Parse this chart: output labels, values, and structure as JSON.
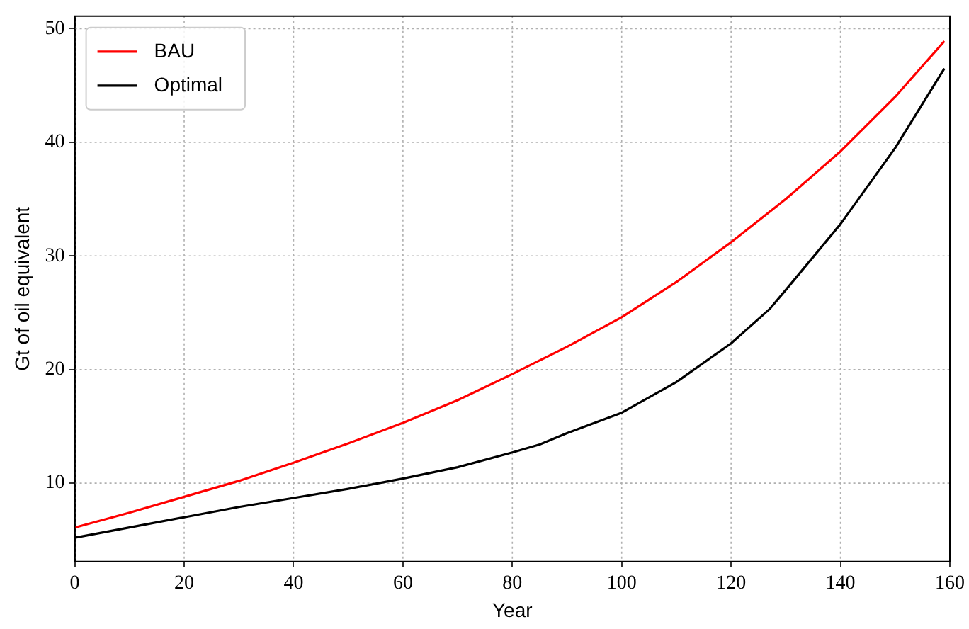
{
  "chart_data": {
    "type": "line",
    "xlabel": "Year",
    "ylabel": "Gt of oil equivalent",
    "xlim": [
      0,
      160
    ],
    "xticks": [
      0,
      20,
      40,
      60,
      80,
      100,
      120,
      140,
      160
    ],
    "ylim": [
      3.1,
      51.1
    ],
    "yticks": [
      10,
      20,
      30,
      40,
      50
    ],
    "grid": true,
    "legend": "top left",
    "line_style": "solid",
    "marker": "none",
    "series": [
      {
        "name": "BAU",
        "color": "#ff0000",
        "x": [
          0,
          10,
          20,
          30,
          40,
          50,
          60,
          70,
          80,
          90,
          100,
          110,
          120,
          130,
          140,
          150,
          159
        ],
        "values": [
          6.1,
          7.4,
          8.8,
          10.2,
          11.8,
          13.5,
          15.3,
          17.3,
          19.6,
          22.0,
          24.6,
          27.7,
          31.2,
          35.0,
          39.2,
          44.0,
          48.9
        ]
      },
      {
        "name": "Optimal",
        "color": "#000000",
        "x": [
          0,
          10,
          20,
          30,
          40,
          50,
          60,
          70,
          80,
          85,
          90,
          100,
          110,
          120,
          127,
          130,
          140,
          150,
          159
        ],
        "values": [
          5.2,
          6.1,
          7.0,
          7.9,
          8.7,
          9.5,
          10.4,
          11.4,
          12.7,
          13.4,
          14.4,
          16.2,
          18.9,
          22.3,
          25.3,
          27.0,
          32.8,
          39.5,
          46.5
        ]
      }
    ]
  }
}
